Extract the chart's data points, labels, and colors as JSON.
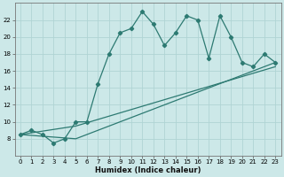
{
  "xlabel": "Humidex (Indice chaleur)",
  "line1_x": [
    0,
    1,
    2,
    3,
    4,
    5,
    6,
    7,
    8,
    9,
    10,
    11,
    12,
    13,
    14,
    15,
    16,
    17,
    18,
    19,
    20,
    21,
    22,
    23
  ],
  "line1_y": [
    8.5,
    9.0,
    8.5,
    7.5,
    8.0,
    10.0,
    10.0,
    14.5,
    18.0,
    20.5,
    21.0,
    23.0,
    21.5,
    19.0,
    20.5,
    22.5,
    22.0,
    17.5,
    22.5,
    20.0,
    17.0,
    16.5,
    18.0,
    17.0
  ],
  "line2_x": [
    0,
    5,
    23
  ],
  "line2_y": [
    8.5,
    9.5,
    16.5
  ],
  "line3_x": [
    0,
    5,
    23
  ],
  "line3_y": [
    8.5,
    8.0,
    17.0
  ],
  "line_color": "#2d7a72",
  "bg_color": "#cce8e8",
  "grid_color": "#b0d4d4",
  "ylim": [
    6,
    24
  ],
  "xlim": [
    -0.5,
    23.5
  ],
  "yticks": [
    8,
    10,
    12,
    14,
    16,
    18,
    20,
    22
  ],
  "xticks": [
    0,
    1,
    2,
    3,
    4,
    5,
    6,
    7,
    8,
    9,
    10,
    11,
    12,
    13,
    14,
    15,
    16,
    17,
    18,
    19,
    20,
    21,
    22,
    23
  ],
  "tick_fontsize": 5.0,
  "xlabel_fontsize": 6.0
}
